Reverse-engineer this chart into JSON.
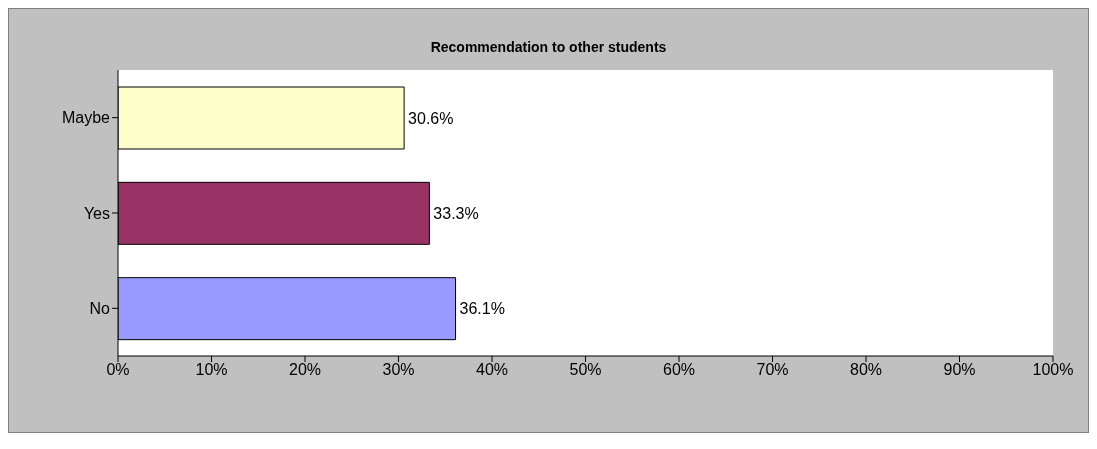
{
  "chart_data": {
    "type": "bar",
    "title": "Recommendation to other students",
    "orientation": "horizontal",
    "categories": [
      "Maybe",
      "Yes",
      "No"
    ],
    "values": [
      30.6,
      33.3,
      36.1
    ],
    "colors": [
      "#ffffcc",
      "#993366",
      "#9999ff"
    ],
    "value_labels": [
      "30.6%",
      "33.3%",
      "36.1%"
    ],
    "xlim": [
      0,
      100
    ],
    "xticks": [
      {
        "value": 0,
        "label": "0%"
      },
      {
        "value": 10,
        "label": "10%"
      },
      {
        "value": 20,
        "label": "20%"
      },
      {
        "value": 30,
        "label": "30%"
      },
      {
        "value": 40,
        "label": "40%"
      },
      {
        "value": 50,
        "label": "50%"
      },
      {
        "value": 60,
        "label": "60%"
      },
      {
        "value": 70,
        "label": "70%"
      },
      {
        "value": 80,
        "label": "80%"
      },
      {
        "value": 90,
        "label": "90%"
      },
      {
        "value": 100,
        "label": "100%"
      }
    ],
    "grid": false
  }
}
